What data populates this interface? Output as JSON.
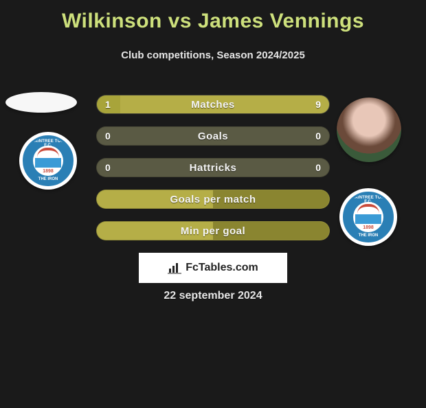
{
  "title": "Wilkinson vs James Vennings",
  "subtitle": "Club competitions, Season 2024/2025",
  "colors": {
    "background": "#1a1a1a",
    "title": "#cde07c",
    "subtitle": "#e6e6e6",
    "bar_accent": "#a8a43a",
    "bar_olive_light": "#b5ae47",
    "bar_olive_dark": "#8a8530",
    "bar_neutral": "#5a5a44",
    "badge_blue": "#2a7fb5",
    "watermark_bg": "#ffffff"
  },
  "club": {
    "year": "1898",
    "top_text": "BRAINTREE TOWN F.C.",
    "bottom_text": "THE IRON"
  },
  "stats": [
    {
      "label": "Matches",
      "left_value": "1",
      "right_value": "9",
      "left_pct": 10,
      "right_pct": 90,
      "left_color": "#a8a43a",
      "right_color": "#b5ae47",
      "bg_color": "#5a5a44"
    },
    {
      "label": "Goals",
      "left_value": "0",
      "right_value": "0",
      "left_pct": 0,
      "right_pct": 0,
      "left_color": "#a8a43a",
      "right_color": "#a8a43a",
      "bg_color": "#5a5a44"
    },
    {
      "label": "Hattricks",
      "left_value": "0",
      "right_value": "0",
      "left_pct": 0,
      "right_pct": 0,
      "left_color": "#a8a43a",
      "right_color": "#a8a43a",
      "bg_color": "#5a5a44"
    },
    {
      "label": "Goals per match",
      "left_value": "",
      "right_value": "",
      "left_pct": 50,
      "right_pct": 50,
      "left_color": "#b5ae47",
      "right_color": "#8a8530",
      "bg_color": "#b5ae47"
    },
    {
      "label": "Min per goal",
      "left_value": "",
      "right_value": "",
      "left_pct": 50,
      "right_pct": 50,
      "left_color": "#b5ae47",
      "right_color": "#8a8530",
      "bg_color": "#b5ae47"
    }
  ],
  "watermark": "FcTables.com",
  "date": "22 september 2024"
}
